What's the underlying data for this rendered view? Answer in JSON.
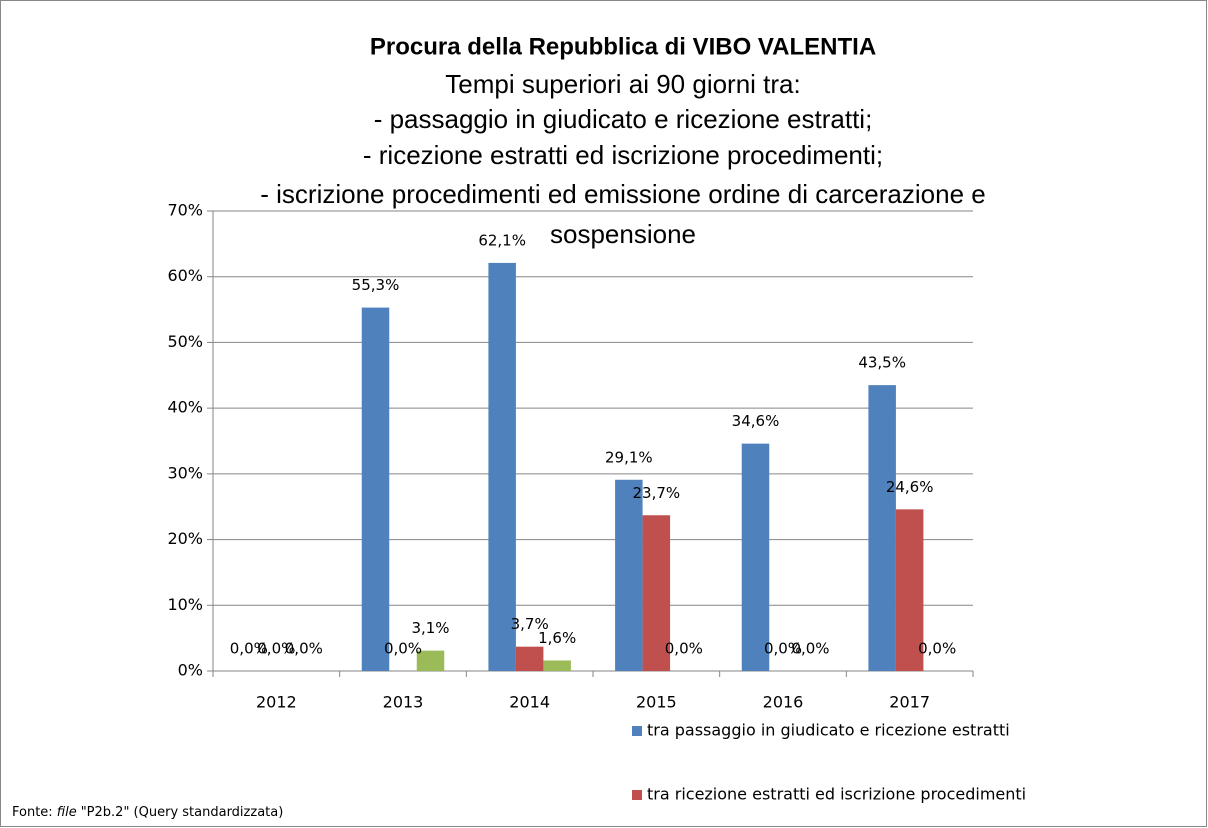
{
  "chart_data": {
    "type": "bar",
    "title": "Procura della Repubblica di VIBO VALENTIA",
    "subtitle": [
      "Tempi superiori ai 90 giorni tra:",
      "- passaggio in giudicato e ricezione estratti;",
      "- ricezione estratti ed iscrizione procedimenti;",
      "- iscrizione procedimenti ed emissione ordine di carcerazione e",
      "sospensione"
    ],
    "categories": [
      "2012",
      "2013",
      "2014",
      "2015",
      "2016",
      "2017"
    ],
    "series": [
      {
        "name": "tra passaggio in giudicato e ricezione estratti",
        "color": "#4f81bd",
        "values": [
          0.0,
          55.3,
          62.1,
          29.1,
          34.6,
          43.5
        ],
        "value_labels": [
          "0,0%",
          "55,3%",
          "62,1%",
          "29,1%",
          "34,6%",
          "43,5%"
        ]
      },
      {
        "name": "tra ricezione estratti ed iscrizione procedimenti",
        "color": "#c0504d",
        "values": [
          0.0,
          0.0,
          3.7,
          23.7,
          0.0,
          24.6
        ],
        "value_labels": [
          "0,0%",
          "0,0%",
          "3,7%",
          "23,7%",
          "0,0%",
          "24,6%"
        ]
      },
      {
        "color": "#9bbb59",
        "values": [
          0.0,
          3.1,
          1.6,
          0.0,
          0.0,
          0.0
        ],
        "value_labels": [
          "0,0%",
          "3,1%",
          "1,6%",
          "0,0%",
          "0,0%",
          "0,0%"
        ]
      }
    ],
    "ylim": [
      0,
      70
    ],
    "yticks": [
      {
        "value": 0,
        "label": "0%"
      },
      {
        "value": 10,
        "label": "10%"
      },
      {
        "value": 20,
        "label": "20%"
      },
      {
        "value": 30,
        "label": "30%"
      },
      {
        "value": 40,
        "label": "40%"
      },
      {
        "value": 50,
        "label": "50%"
      },
      {
        "value": 60,
        "label": "60%"
      },
      {
        "value": 70,
        "label": "70%"
      }
    ],
    "grid": true,
    "legend": "bottom-right",
    "footer": [
      "Fonte:",
      "file",
      "\"P2b.2\" (Query standardizzata)"
    ]
  }
}
